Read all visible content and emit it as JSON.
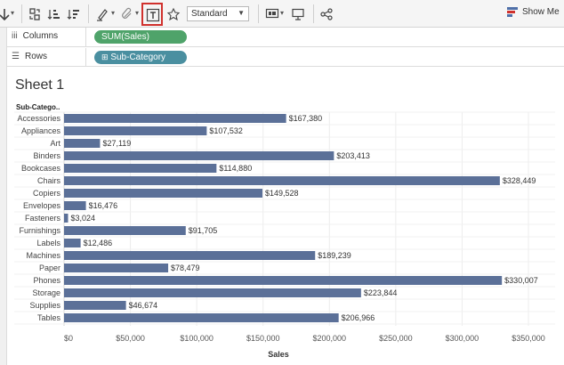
{
  "toolbar": {
    "fit_value": "Standard",
    "show_me_label": "Show Me",
    "icons": [
      "swap-icon",
      "sort-ascending-icon",
      "sort-descending-icon",
      "highlight-icon",
      "group-icon",
      "show-labels-icon",
      "pin-icon",
      "presentation-icon",
      "share-icon"
    ]
  },
  "shelves": {
    "columns_label": "Columns",
    "rows_label": "Rows",
    "columns_pill": "SUM(Sales)",
    "rows_pill": "Sub-Category"
  },
  "sheet": {
    "title": "Sheet 1",
    "column_header": "Sub-Catego..",
    "bar_color": "#5b7098"
  },
  "chart_data": {
    "type": "bar",
    "orientation": "horizontal",
    "categories": [
      "Accessories",
      "Appliances",
      "Art",
      "Binders",
      "Bookcases",
      "Chairs",
      "Copiers",
      "Envelopes",
      "Fasteners",
      "Furnishings",
      "Labels",
      "Machines",
      "Paper",
      "Phones",
      "Storage",
      "Supplies",
      "Tables"
    ],
    "values": [
      167380,
      107532,
      27119,
      203413,
      114880,
      328449,
      149528,
      16476,
      3024,
      91705,
      12486,
      189239,
      78479,
      330007,
      223844,
      46674,
      206966
    ],
    "data_labels": [
      "$167,380",
      "$107,532",
      "$27,119",
      "$203,413",
      "$114,880",
      "$328,449",
      "$149,528",
      "$16,476",
      "$3,024",
      "$91,705",
      "$12,486",
      "$189,239",
      "$78,479",
      "$330,007",
      "$223,844",
      "$46,674",
      "$206,966"
    ],
    "xlabel": "Sales",
    "ylabel": "Sub-Catego..",
    "xlim": [
      0,
      350000
    ],
    "x_ticks": [
      0,
      50000,
      100000,
      150000,
      200000,
      250000,
      300000,
      350000
    ],
    "x_tick_labels": [
      "$0",
      "$50,000",
      "$100,000",
      "$150,000",
      "$200,000",
      "$250,000",
      "$300,000",
      "$350,000"
    ],
    "grid": true
  }
}
